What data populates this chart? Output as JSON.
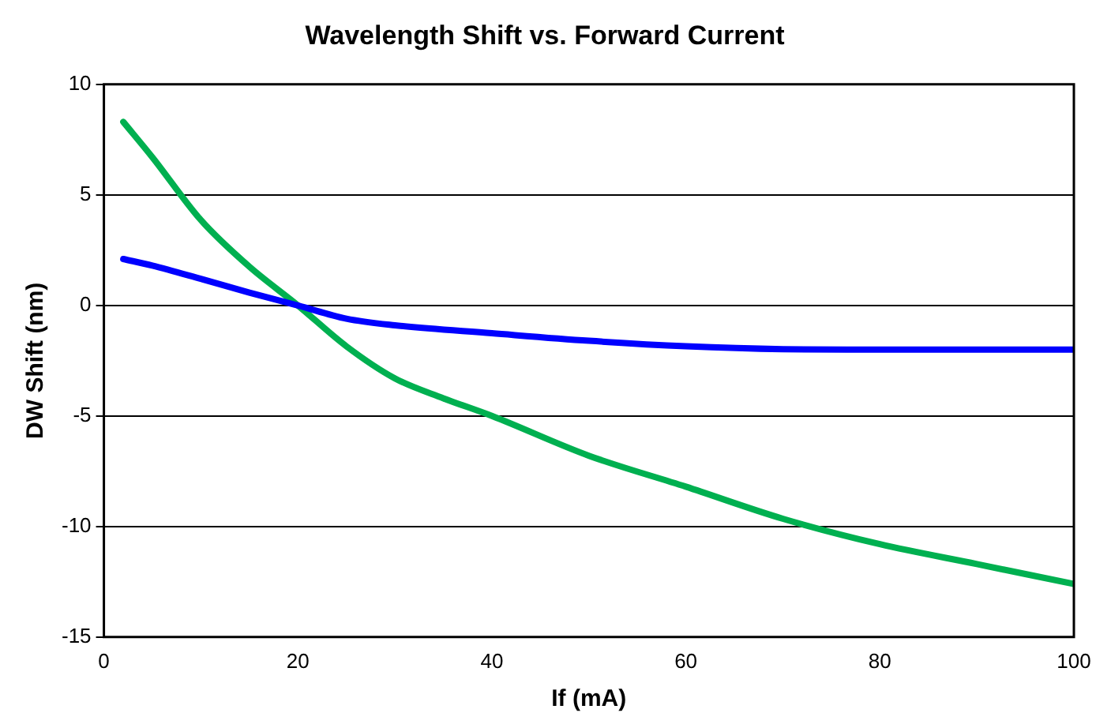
{
  "chart_data": {
    "type": "line",
    "title": "Wavelength Shift vs. Forward Current",
    "xlabel": "If (mA)",
    "ylabel": "DW Shift (nm)",
    "xlim": [
      0,
      100
    ],
    "xticks": [
      0,
      20,
      40,
      60,
      80,
      100
    ],
    "ylim": [
      -15,
      10
    ],
    "yticks": [
      -15,
      -10,
      -5,
      0,
      5,
      10
    ],
    "grid": "y",
    "legend": false,
    "marker": "none",
    "line_style": "solid",
    "series": [
      {
        "color": "#0000ff",
        "x": [
          2,
          5,
          10,
          15,
          20,
          25,
          30,
          40,
          50,
          60,
          70,
          80,
          90,
          100
        ],
        "values": [
          2.1,
          1.8,
          1.2,
          0.58,
          0,
          -0.6,
          -0.9,
          -1.26,
          -1.6,
          -1.85,
          -1.98,
          -2.0,
          -2.0,
          -2.0
        ]
      },
      {
        "color": "#00b050",
        "x": [
          2,
          5,
          10,
          15,
          20,
          25,
          30,
          35,
          40,
          50,
          60,
          70,
          80,
          90,
          100
        ],
        "values": [
          8.3,
          6.7,
          3.86,
          1.75,
          0,
          -1.85,
          -3.3,
          -4.2,
          -5.0,
          -6.8,
          -8.2,
          -9.65,
          -10.8,
          -11.7,
          -12.6
        ]
      }
    ]
  }
}
